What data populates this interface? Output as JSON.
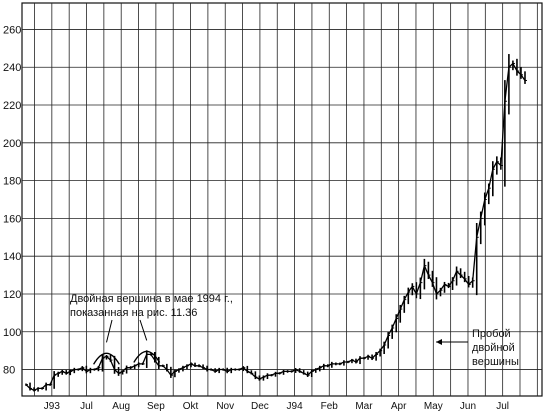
{
  "chart_data": {
    "type": "bar",
    "title": "",
    "xlabel": "",
    "ylabel": "",
    "ylim": [
      66,
      274
    ],
    "y_ticks": [
      80,
      100,
      120,
      140,
      160,
      180,
      200,
      220,
      240,
      260
    ],
    "y_axis_side": "right",
    "grid": true,
    "x_ticks": [
      "J93",
      "Jul",
      "Aug",
      "Sep",
      "Okt",
      "Nov",
      "Dec",
      "J94",
      "Feb",
      "Mar",
      "Apr",
      "May",
      "Jun",
      "Jul"
    ],
    "series": [
      {
        "values": [
          72,
          70,
          69,
          70,
          70,
          72,
          72,
          77,
          78,
          79,
          78,
          79,
          80,
          80,
          81,
          79,
          80,
          80,
          81,
          86,
          87,
          85,
          80,
          78,
          79,
          81,
          81,
          82,
          83,
          83,
          88,
          88,
          85,
          82,
          82,
          80,
          77,
          79,
          80,
          81,
          82,
          83,
          82,
          82,
          81,
          80,
          80,
          79,
          80,
          80,
          79,
          80,
          80,
          80,
          81,
          79,
          78,
          76,
          75,
          76,
          77,
          77,
          78,
          78,
          79,
          79,
          79,
          80,
          79,
          78,
          77,
          79,
          80,
          81,
          82,
          82,
          83,
          83,
          83,
          84,
          84,
          85,
          84,
          86,
          86,
          87,
          86,
          88,
          90,
          93,
          98,
          102,
          107,
          112,
          117,
          121,
          124,
          120,
          126,
          135,
          130,
          126,
          120,
          122,
          125,
          124,
          127,
          132,
          130,
          128,
          125,
          127,
          150,
          160,
          170,
          176,
          186,
          190,
          188,
          222,
          240,
          242,
          238,
          236,
          233
        ]
      }
    ]
  },
  "annotations": {
    "double_top": [
      "Двойная вершина в мае 1994 г.,",
      "показанная на рис. 11.36"
    ],
    "breakout": [
      "Пробой",
      "двойной",
      "вершины"
    ]
  }
}
